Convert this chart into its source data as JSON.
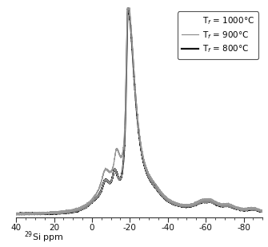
{
  "xlabel": "$^{29}$Si ppm",
  "xlim": [
    40,
    -90
  ],
  "ylim": [
    -0.015,
    1.05
  ],
  "bg_color": "#ffffff",
  "xticks": [
    40,
    20,
    0,
    -20,
    -40,
    -60,
    -80
  ],
  "xtick_labels": [
    "40",
    "20",
    "0",
    "-20",
    "-40",
    "-60",
    "-80"
  ],
  "legend_entries": [
    {
      "label": "T$_f$ = 1000°C",
      "color": "#aaaaaa",
      "lw": 0.8,
      "show_line": false
    },
    {
      "label": "T$_f$ = 900°C",
      "color": "#888888",
      "lw": 0.8,
      "show_line": true
    },
    {
      "label": "T$_f$ = 800°C",
      "color": "#111111",
      "lw": 1.6,
      "show_line": true
    }
  ],
  "series": {
    "T1000": {
      "color": "#999999",
      "lw": 0.8
    },
    "T900": {
      "color": "#888888",
      "lw": 0.8
    },
    "T800": {
      "color": "#111111",
      "lw": 1.4
    }
  }
}
